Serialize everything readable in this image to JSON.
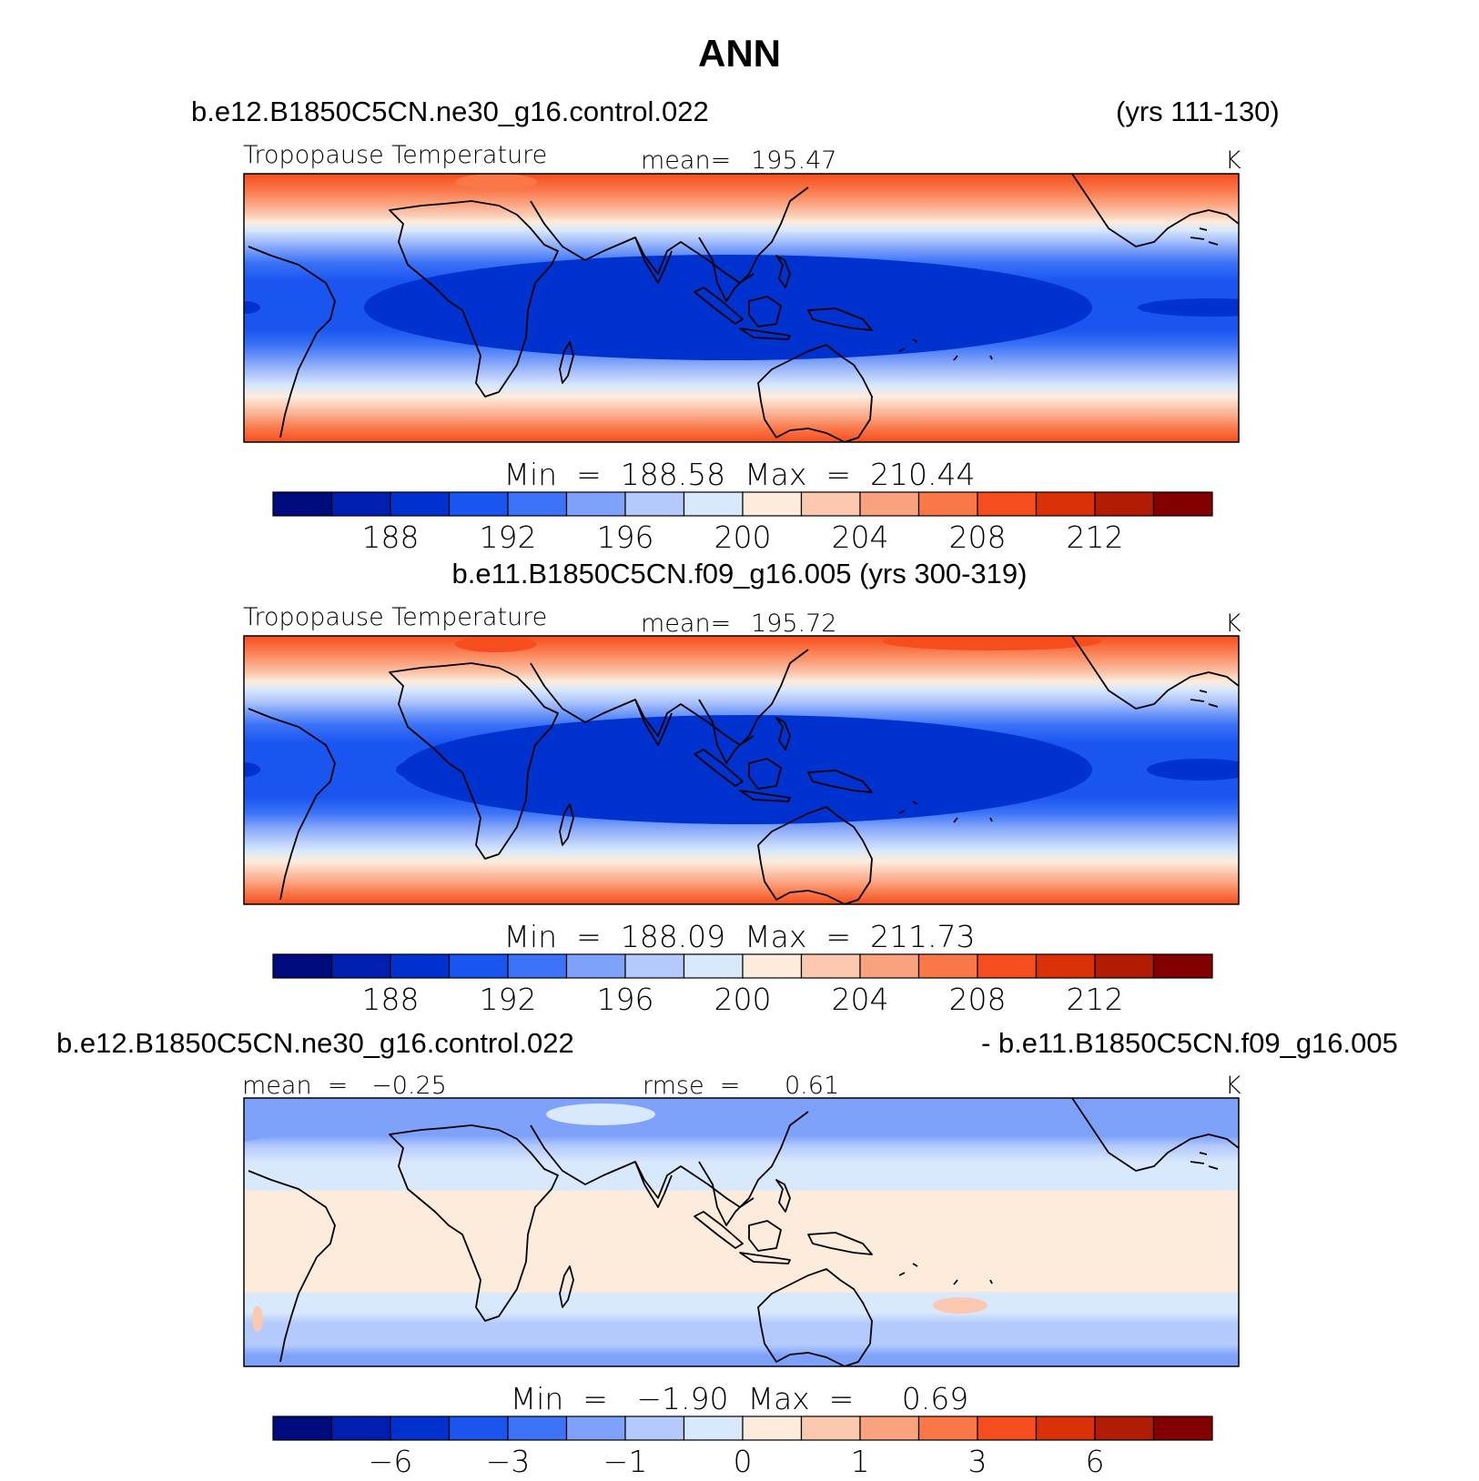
{
  "page_title": "ANN",
  "panels": [
    {
      "case_left": "b.e12.B1850C5CN.ne30_g16.control.022",
      "case_right": "(yrs 111-130)",
      "field_label": "Tropopause Temperature",
      "stat_label": "mean=",
      "stat_value": "195.47",
      "units": "K",
      "minmax_text": "Min  =  188.58  Max  =  210.44",
      "colorbar_kind": "abs"
    },
    {
      "case_left": "b.e11.B1850C5CN.f09_g16.005 (yrs 300-319)",
      "case_right": "",
      "field_label": "Tropopause Temperature",
      "stat_label": "mean=",
      "stat_value": "195.72",
      "units": "K",
      "minmax_text": "Min  =  188.09  Max  =  211.73",
      "colorbar_kind": "abs"
    },
    {
      "case_left": "b.e12.B1850C5CN.ne30_g16.control.022",
      "case_right": "- b.e11.B1850C5CN.f09_g16.005",
      "field_label": "mean  =   −0.25",
      "stat_label": "rmse  =",
      "stat_value": "0.61",
      "units": "K",
      "minmax_text": "Min  =   −1.90  Max  =     0.69",
      "colorbar_kind": "diff"
    }
  ],
  "chart_data": {
    "type": "heatmap",
    "title": "ANN",
    "variable": "Tropopause Temperature",
    "units": "K",
    "colors": [
      "#000c7d",
      "#001fb0",
      "#0032d0",
      "#1a55f0",
      "#3c73f7",
      "#7ea2fa",
      "#b4cafc",
      "#d8e8fd",
      "#fdecdc",
      "#fcc8b0",
      "#fba27e",
      "#fa7748",
      "#f64d1e",
      "#da3108",
      "#b21c05",
      "#820000"
    ],
    "panels": [
      {
        "name": "b.e12.B1850C5CN.ne30_g16.control.022 (yrs 111-130)",
        "mean": 195.47,
        "min": 188.58,
        "max": 210.44,
        "colorbar_levels": [
          186,
          188,
          190,
          192,
          194,
          196,
          198,
          200,
          202,
          204,
          206,
          208,
          210,
          212,
          214
        ],
        "colorbar_tick_labels": [
          "188",
          "192",
          "196",
          "200",
          "204",
          "208",
          "212"
        ]
      },
      {
        "name": "b.e11.B1850C5CN.f09_g16.005 (yrs 300-319)",
        "mean": 195.72,
        "min": 188.09,
        "max": 211.73,
        "colorbar_levels": [
          186,
          188,
          190,
          192,
          194,
          196,
          198,
          200,
          202,
          204,
          206,
          208,
          210,
          212,
          214
        ],
        "colorbar_tick_labels": [
          "188",
          "192",
          "196",
          "200",
          "204",
          "208",
          "212"
        ]
      },
      {
        "name": "b.e12.B1850C5CN.ne30_g16.control.022 - b.e11.B1850C5CN.f09_g16.005",
        "mean": -0.25,
        "rmse": 0.61,
        "min": -1.9,
        "max": 0.69,
        "colorbar_levels": [
          -8,
          -6,
          -4,
          -3,
          -2,
          -1,
          -0.5,
          0,
          0.5,
          1,
          2,
          3,
          4,
          6,
          8
        ],
        "colorbar_tick_labels": [
          "−6",
          "−3",
          "−1",
          "0",
          "1",
          "3",
          "6"
        ]
      }
    ]
  }
}
